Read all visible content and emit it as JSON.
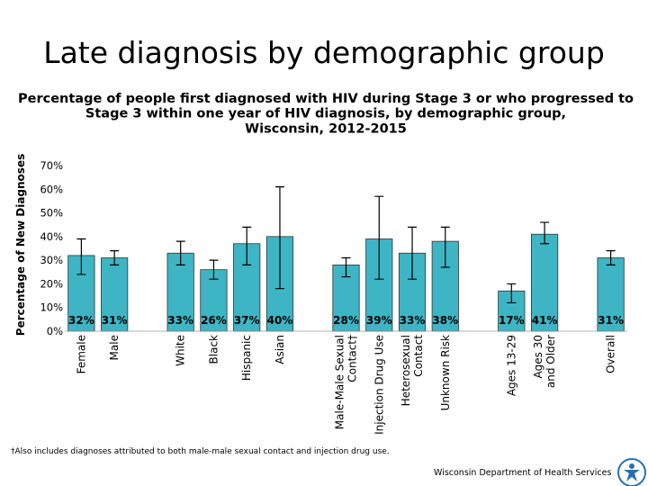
{
  "chart_data": {
    "type": "bar",
    "title": "Late diagnosis by demographic group",
    "subtitle": "Percentage of people first diagnosed with HIV during Stage 3 or who progressed to\nStage 3 within one year of HIV diagnosis, by demographic group,\nWisconsin, 2012-2015",
    "y_label": "Percentage of New Diagnoses",
    "footnote": "†Also includes diagnoses attributed to both male-male sexual contact and injection drug use.",
    "source": "Wisconsin Department of Health Services",
    "categories": [
      "Female",
      "Male",
      null,
      "White",
      "Black",
      "Hispanic",
      "Asian",
      null,
      "Male-Male Sexual\nContact†",
      "Injection Drug Use",
      "Heterosexual\nContact",
      "Unknown Risk",
      null,
      "Ages 13-29",
      "Ages 30\nand Older",
      null,
      "Overall"
    ],
    "series": [
      {
        "color": "#3db5c4",
        "values": [
          32,
          31,
          null,
          33,
          26,
          37,
          40,
          null,
          28,
          39,
          33,
          38,
          null,
          17,
          41,
          null,
          31
        ],
        "value_labels": [
          "32%",
          "31%",
          null,
          "33%",
          "26%",
          "37%",
          "40%",
          null,
          "28%",
          "39%",
          "33%",
          "38%",
          null,
          "17%",
          "41%",
          null,
          "31%"
        ],
        "error_low": [
          24,
          28,
          null,
          28,
          22,
          28,
          18,
          null,
          23,
          22,
          22,
          27,
          null,
          12,
          37,
          null,
          28
        ],
        "error_high": [
          39,
          34,
          null,
          38,
          30,
          44,
          61,
          null,
          31,
          57,
          44,
          44,
          null,
          20,
          46,
          null,
          34
        ]
      }
    ],
    "ylim": [
      0,
      70
    ],
    "yticks": [
      {
        "value": 0,
        "label": "0%"
      },
      {
        "value": 10,
        "label": "10%"
      },
      {
        "value": 20,
        "label": "20%"
      },
      {
        "value": 30,
        "label": "30%"
      },
      {
        "value": 40,
        "label": "40%"
      },
      {
        "value": 50,
        "label": "50%"
      },
      {
        "value": 60,
        "label": "60%"
      },
      {
        "value": 70,
        "label": "70%"
      }
    ]
  }
}
